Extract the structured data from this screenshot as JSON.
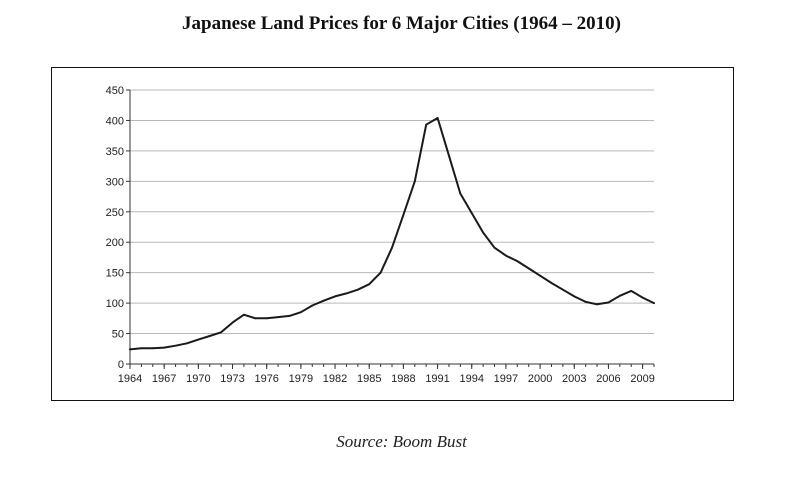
{
  "title": "Japanese Land Prices for 6 Major Cities (1964 – 2010)",
  "source": "Source: Boom Bust",
  "chart_data": {
    "type": "line",
    "title": "",
    "xlabel": "",
    "ylabel": "",
    "xlim": [
      1964,
      2010
    ],
    "ylim": [
      0,
      450
    ],
    "x_ticks": [
      "1964",
      "1967",
      "1970",
      "1973",
      "1976",
      "1979",
      "1982",
      "1985",
      "1988",
      "1991",
      "1994",
      "1997",
      "2000",
      "2003",
      "2006",
      "2009"
    ],
    "y_ticks": [
      "0",
      "50",
      "100",
      "150",
      "200",
      "250",
      "300",
      "350",
      "400",
      "450"
    ],
    "grid": "horizontal",
    "legend": "none",
    "line_color": "#1a1a1a",
    "series": [
      {
        "x": [
          1964,
          1965,
          1966,
          1967,
          1968,
          1969,
          1970,
          1971,
          1972,
          1973,
          1974,
          1975,
          1976,
          1977,
          1978,
          1979,
          1980,
          1981,
          1982,
          1983,
          1984,
          1985,
          1986,
          1987,
          1988,
          1989,
          1990,
          1991,
          1992,
          1993,
          1994,
          1995,
          1996,
          1997,
          1998,
          1999,
          2000,
          2001,
          2002,
          2003,
          2004,
          2005,
          2006,
          2007,
          2008,
          2009,
          2010
        ],
        "values": [
          24,
          26,
          26,
          27,
          30,
          34,
          40,
          46,
          52,
          68,
          81,
          75,
          75,
          77,
          79,
          85,
          96,
          104,
          111,
          116,
          122,
          131,
          150,
          191,
          245,
          300,
          393,
          404,
          342,
          280,
          248,
          216,
          191,
          178,
          169,
          157,
          145,
          133,
          122,
          111,
          102,
          98,
          101,
          112,
          120,
          109,
          100
        ]
      }
    ]
  }
}
